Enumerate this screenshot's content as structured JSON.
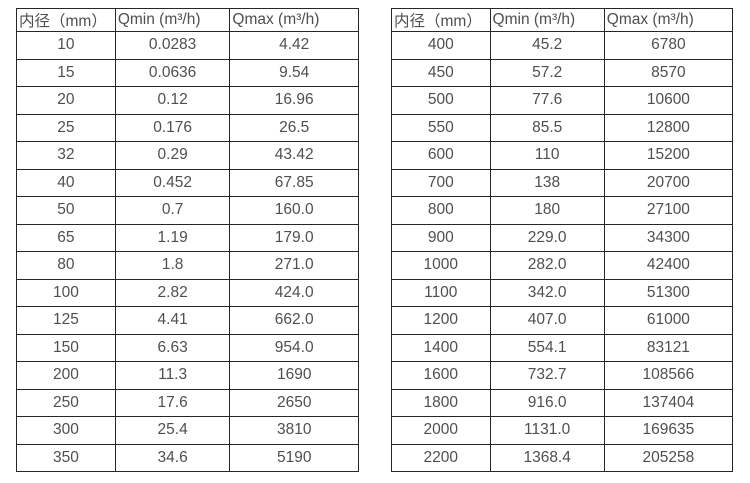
{
  "page": {
    "background_color": "#ffffff",
    "text_color": "#4f4f4f",
    "border_color": "#262626"
  },
  "tables": [
    {
      "name": "flow-spec-table-small-diameters",
      "headers": [
        "内径（mm）",
        "Qmin (m³/h)",
        "Qmax (m³/h)"
      ],
      "rows": [
        [
          "10",
          "0.0283",
          "4.42"
        ],
        [
          "15",
          "0.0636",
          "9.54"
        ],
        [
          "20",
          "0.12",
          "16.96"
        ],
        [
          "25",
          "0.176",
          "26.5"
        ],
        [
          "32",
          "0.29",
          "43.42"
        ],
        [
          "40",
          "0.452",
          "67.85"
        ],
        [
          "50",
          "0.7",
          "160.0"
        ],
        [
          "65",
          "1.19",
          "179.0"
        ],
        [
          "80",
          "1.8",
          "271.0"
        ],
        [
          "100",
          "2.82",
          "424.0"
        ],
        [
          "125",
          "4.41",
          "662.0"
        ],
        [
          "150",
          "6.63",
          "954.0"
        ],
        [
          "200",
          "11.3",
          "1690"
        ],
        [
          "250",
          "17.6",
          "2650"
        ],
        [
          "300",
          "25.4",
          "3810"
        ],
        [
          "350",
          "34.6",
          "5190"
        ]
      ]
    },
    {
      "name": "flow-spec-table-large-diameters",
      "headers": [
        "内径（mm）",
        "Qmin (m³/h)",
        "Qmax (m³/h)"
      ],
      "rows": [
        [
          "400",
          "45.2",
          "6780"
        ],
        [
          "450",
          "57.2",
          "8570"
        ],
        [
          "500",
          "77.6",
          "10600"
        ],
        [
          "550",
          "85.5",
          "12800"
        ],
        [
          "600",
          "110",
          "15200"
        ],
        [
          "700",
          "138",
          "20700"
        ],
        [
          "800",
          "180",
          "27100"
        ],
        [
          "900",
          "229.0",
          "34300"
        ],
        [
          "1000",
          "282.0",
          "42400"
        ],
        [
          "1100",
          "342.0",
          "51300"
        ],
        [
          "1200",
          "407.0",
          "61000"
        ],
        [
          "1400",
          "554.1",
          "83121"
        ],
        [
          "1600",
          "732.7",
          "108566"
        ],
        [
          "1800",
          "916.0",
          "137404"
        ],
        [
          "2000",
          "1131.0",
          "169635"
        ],
        [
          "2200",
          "1368.4",
          "205258"
        ]
      ]
    }
  ]
}
